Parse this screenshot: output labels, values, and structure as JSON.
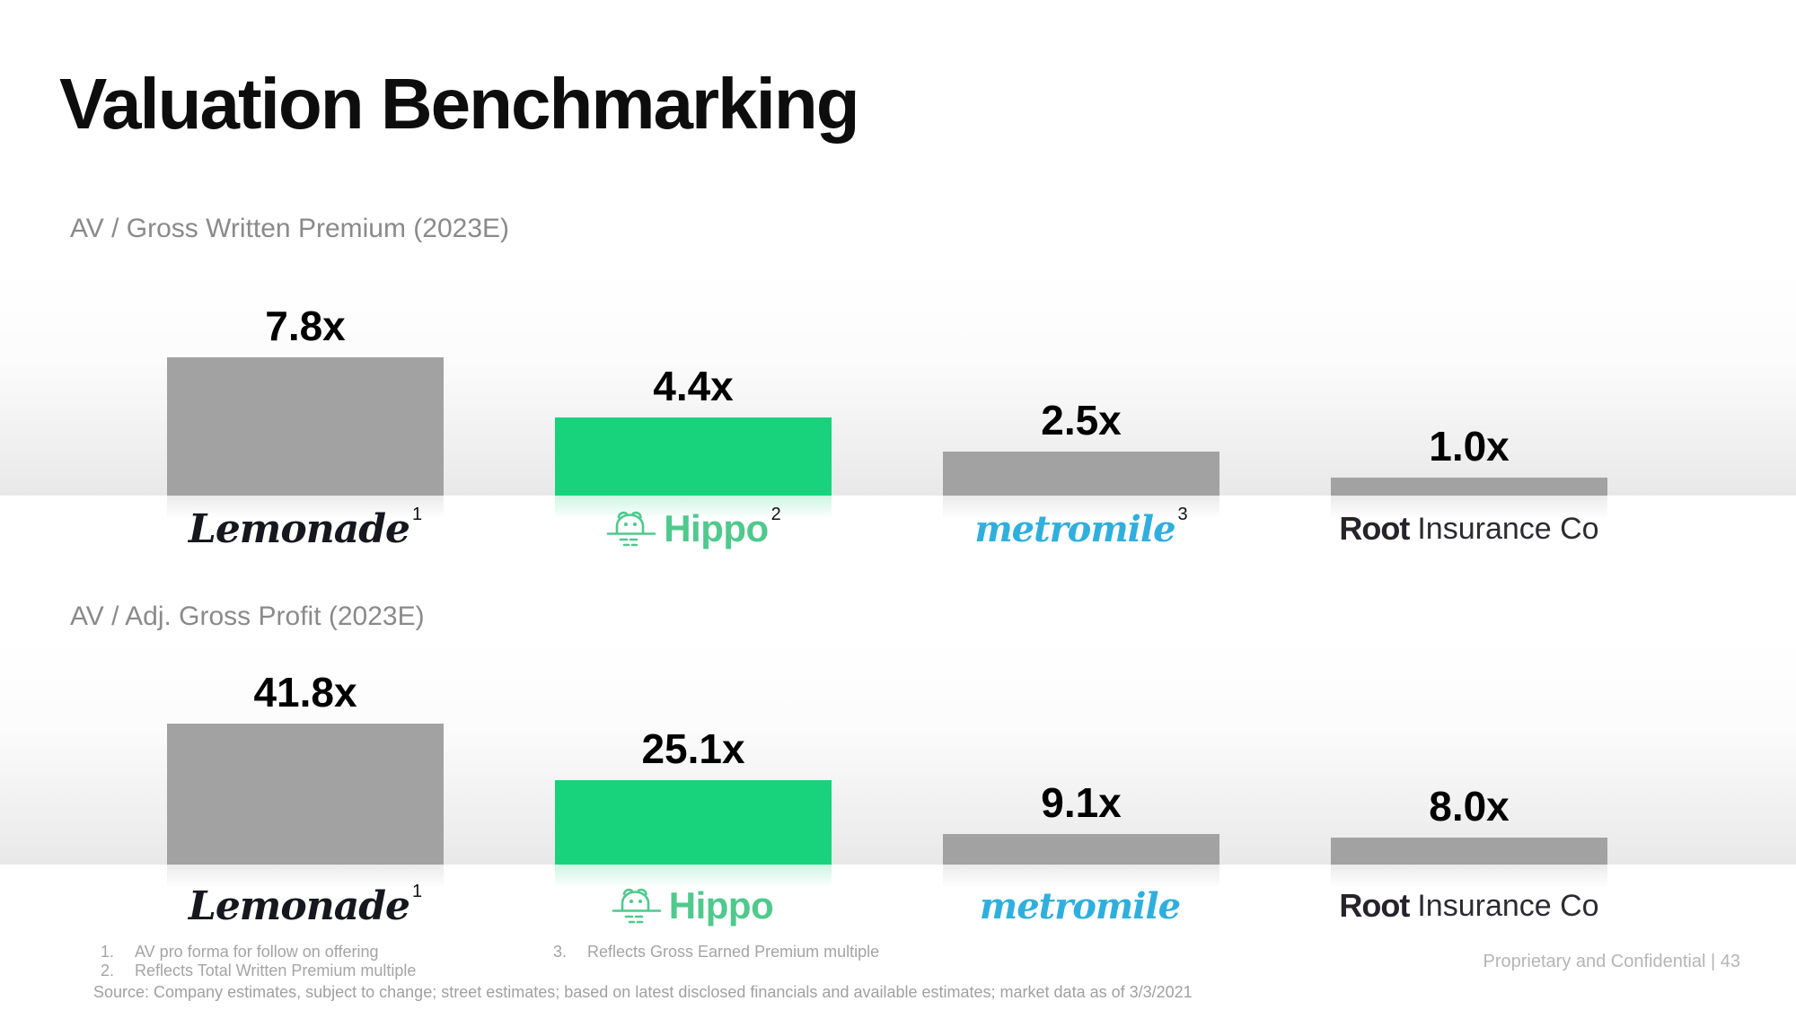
{
  "slide": {
    "title": "Valuation Benchmarking",
    "footer_right": "Proprietary and Confidential | 43"
  },
  "colors": {
    "accent_green": "#19d37c",
    "bar_gray": "#a2a2a2",
    "hippo_logo_green": "#4fc98c",
    "metromile_teal": "#2fafdd",
    "lemonade_black": "#17171f",
    "root_black": "#26242a",
    "title_black": "#0d0d0d",
    "subtitle_gray": "#8a8a8a",
    "footnote_gray": "#a4a4a4"
  },
  "companies": {
    "lemonade": {
      "name": "Lemonade"
    },
    "hippo": {
      "name": "Hippo"
    },
    "metromile": {
      "name": "metromile"
    },
    "root": {
      "bold": "Root",
      "rest": "Insurance Co"
    }
  },
  "charts": [
    {
      "title": "AV / Gross Written Premium (2023E)",
      "bars": [
        {
          "company": "Lemonade",
          "label": "7.8x",
          "footnote_ref": "1",
          "highlight": false
        },
        {
          "company": "Hippo",
          "label": "4.4x",
          "footnote_ref": "2",
          "highlight": true
        },
        {
          "company": "Metromile",
          "label": "2.5x",
          "footnote_ref": "3",
          "highlight": false
        },
        {
          "company": "Root Insurance Co",
          "label": "1.0x",
          "footnote_ref": "",
          "highlight": false
        }
      ]
    },
    {
      "title": "AV / Adj. Gross Profit (2023E)",
      "bars": [
        {
          "company": "Lemonade",
          "label": "41.8x",
          "footnote_ref": "1",
          "highlight": false
        },
        {
          "company": "Hippo",
          "label": "25.1x",
          "footnote_ref": "",
          "highlight": true
        },
        {
          "company": "Metromile",
          "label": "9.1x",
          "footnote_ref": "",
          "highlight": false
        },
        {
          "company": "Root Insurance Co",
          "label": "8.0x",
          "footnote_ref": "",
          "highlight": false
        }
      ]
    }
  ],
  "chart_data": [
    {
      "type": "bar",
      "title": "AV / Gross Written Premium (2023E)",
      "categories": [
        "Lemonade",
        "Hippo",
        "Metromile",
        "Root Insurance Co"
      ],
      "values": [
        7.8,
        4.4,
        2.5,
        1.0
      ],
      "value_labels": [
        "7.8x",
        "4.4x",
        "2.5x",
        "1.0x"
      ],
      "unit": "x",
      "highlighted_category": "Hippo",
      "xlabel": "",
      "ylabel": "",
      "grid": false,
      "legend": false
    },
    {
      "type": "bar",
      "title": "AV / Adj. Gross Profit (2023E)",
      "categories": [
        "Lemonade",
        "Hippo",
        "Metromile",
        "Root Insurance Co"
      ],
      "values": [
        41.8,
        25.1,
        9.1,
        8.0
      ],
      "value_labels": [
        "41.8x",
        "25.1x",
        "9.1x",
        "8.0x"
      ],
      "unit": "x",
      "highlighted_category": "Hippo",
      "xlabel": "",
      "ylabel": "",
      "grid": false,
      "legend": false
    }
  ],
  "footnotes": [
    {
      "num": "1.",
      "text": "AV pro forma for follow on offering"
    },
    {
      "num": "2.",
      "text": "Reflects Total Written Premium multiple"
    },
    {
      "num": "3.",
      "text": "Reflects Gross Earned Premium multiple"
    }
  ],
  "source": "Source: Company estimates, subject to change; street estimates; based on latest disclosed financials and available estimates; market data as of 3/3/2021"
}
